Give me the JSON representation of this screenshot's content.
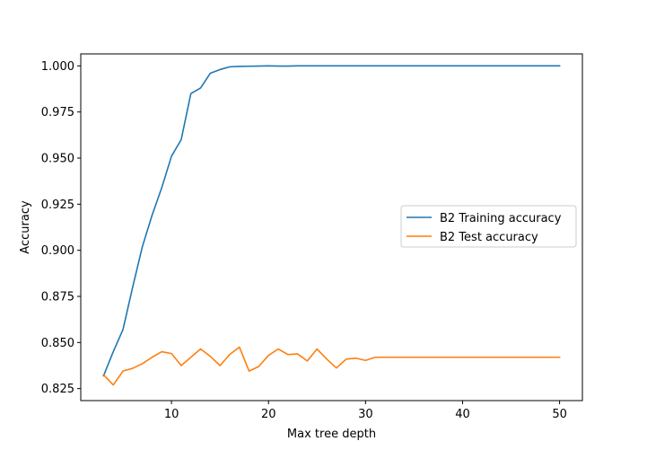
{
  "chart_data": {
    "type": "line",
    "xlabel": "Max tree depth",
    "ylabel": "Accuracy",
    "xlim": [
      0.65,
      52.35
    ],
    "ylim": [
      0.8185,
      1.0065
    ],
    "xticks": [
      10,
      20,
      30,
      40,
      50
    ],
    "xtick_labels": [
      "10",
      "20",
      "30",
      "40",
      "50"
    ],
    "yticks": [
      0.825,
      0.85,
      0.875,
      0.9,
      0.925,
      0.95,
      0.975,
      1.0
    ],
    "ytick_labels": [
      "0.825",
      "0.850",
      "0.875",
      "0.900",
      "0.925",
      "0.950",
      "0.975",
      "1.000"
    ],
    "grid": false,
    "legend_position": "center-right",
    "x": [
      3,
      4,
      5,
      6,
      7,
      8,
      9,
      10,
      11,
      12,
      13,
      14,
      15,
      16,
      17,
      18,
      19,
      20,
      21,
      22,
      23,
      24,
      25,
      26,
      27,
      28,
      29,
      30,
      31,
      32,
      33,
      34,
      35,
      36,
      37,
      38,
      39,
      40,
      41,
      42,
      43,
      44,
      45,
      46,
      47,
      48,
      49,
      50
    ],
    "series": [
      {
        "name": "B2 Training accuracy",
        "color": "#1f77b4",
        "values": [
          0.832,
          0.845,
          0.857,
          0.88,
          0.902,
          0.919,
          0.934,
          0.951,
          0.96,
          0.985,
          0.988,
          0.996,
          0.998,
          0.9995,
          0.9997,
          0.9998,
          0.9999,
          1.0,
          0.9999,
          0.9999,
          1.0,
          1.0,
          1.0,
          1.0,
          1.0,
          1.0,
          1.0,
          1.0,
          1.0,
          1.0,
          1.0,
          1.0,
          1.0,
          1.0,
          1.0,
          1.0,
          1.0,
          1.0,
          1.0,
          1.0,
          1.0,
          1.0,
          1.0,
          1.0,
          1.0,
          1.0,
          1.0,
          1.0
        ]
      },
      {
        "name": "B2 Test accuracy",
        "color": "#ff7f0e",
        "values": [
          0.8325,
          0.827,
          0.8345,
          0.836,
          0.8385,
          0.842,
          0.845,
          0.844,
          0.8375,
          0.842,
          0.8465,
          0.8425,
          0.8375,
          0.8435,
          0.8475,
          0.8345,
          0.837,
          0.843,
          0.8465,
          0.8435,
          0.8438,
          0.84,
          0.8465,
          0.841,
          0.8362,
          0.841,
          0.8415,
          0.8403,
          0.842,
          0.842,
          0.842,
          0.842,
          0.842,
          0.842,
          0.842,
          0.842,
          0.842,
          0.842,
          0.842,
          0.842,
          0.842,
          0.842,
          0.842,
          0.842,
          0.842,
          0.842,
          0.842,
          0.842
        ]
      }
    ]
  }
}
